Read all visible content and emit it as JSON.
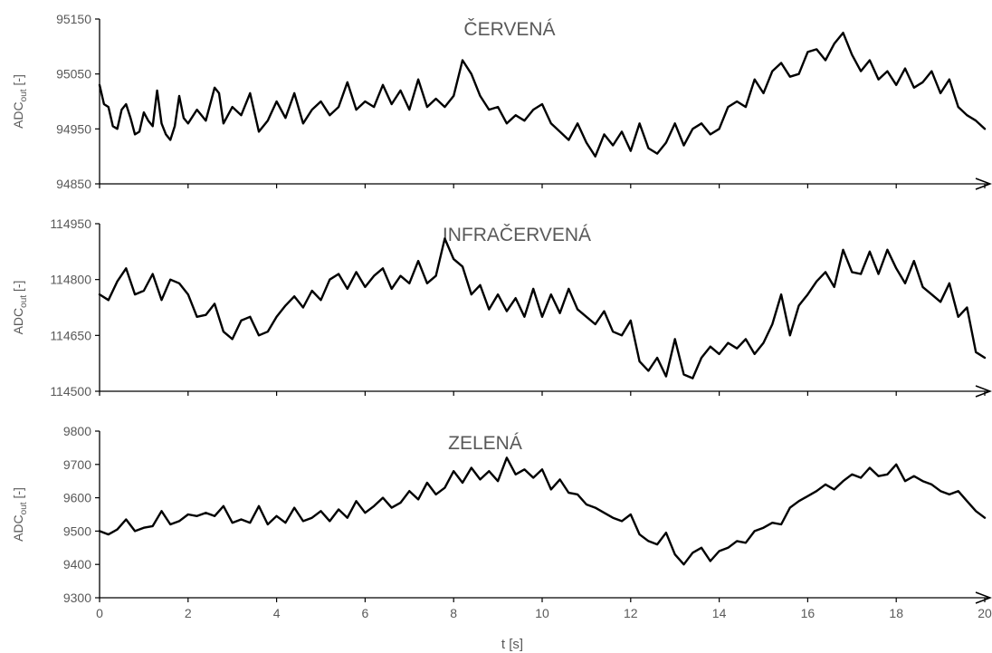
{
  "chart_data": [
    {
      "type": "line",
      "title": "ČERVENÁ",
      "ylabel": "ADC",
      "ylabel_sub": "out",
      "ylabel_unit": " [-]",
      "ylim": [
        94850,
        95150
      ],
      "yticks": [
        94850,
        94950,
        95050,
        95150
      ],
      "xlim": [
        0,
        20
      ],
      "grid": false,
      "series": [
        {
          "color": "#000000",
          "x": [
            0,
            0.1,
            0.2,
            0.3,
            0.4,
            0.5,
            0.6,
            0.7,
            0.8,
            0.9,
            1.0,
            1.1,
            1.2,
            1.3,
            1.4,
            1.5,
            1.6,
            1.7,
            1.8,
            1.9,
            2.0,
            2.2,
            2.4,
            2.6,
            2.7,
            2.8,
            3.0,
            3.2,
            3.4,
            3.6,
            3.8,
            4.0,
            4.2,
            4.4,
            4.6,
            4.8,
            5.0,
            5.2,
            5.4,
            5.6,
            5.8,
            6.0,
            6.2,
            6.4,
            6.6,
            6.8,
            7.0,
            7.2,
            7.4,
            7.6,
            7.8,
            8.0,
            8.2,
            8.4,
            8.6,
            8.8,
            9.0,
            9.2,
            9.4,
            9.6,
            9.8,
            10.0,
            10.2,
            10.4,
            10.6,
            10.8,
            11.0,
            11.2,
            11.4,
            11.6,
            11.8,
            12.0,
            12.2,
            12.4,
            12.6,
            12.8,
            13.0,
            13.2,
            13.4,
            13.6,
            13.8,
            14.0,
            14.2,
            14.4,
            14.6,
            14.8,
            15.0,
            15.2,
            15.4,
            15.6,
            15.8,
            16.0,
            16.2,
            16.4,
            16.6,
            16.8,
            17.0,
            17.2,
            17.4,
            17.6,
            17.8,
            18.0,
            18.2,
            18.4,
            18.6,
            18.8,
            19.0,
            19.2,
            19.4,
            19.6,
            19.8,
            20.0
          ],
          "y": [
            95030,
            94995,
            94990,
            94955,
            94950,
            94985,
            94995,
            94970,
            94940,
            94945,
            94980,
            94965,
            94955,
            95020,
            94960,
            94940,
            94930,
            94955,
            95010,
            94970,
            94960,
            94985,
            94965,
            95025,
            95015,
            94960,
            94990,
            94975,
            95015,
            94945,
            94965,
            95000,
            94970,
            95015,
            94960,
            94985,
            95000,
            94975,
            94990,
            95035,
            94985,
            95000,
            94990,
            95030,
            94995,
            95020,
            94985,
            95040,
            94990,
            95005,
            94990,
            95010,
            95075,
            95050,
            95010,
            94985,
            94990,
            94960,
            94975,
            94965,
            94985,
            94995,
            94960,
            94945,
            94930,
            94960,
            94925,
            94900,
            94940,
            94920,
            94945,
            94910,
            94960,
            94915,
            94905,
            94925,
            94960,
            94920,
            94950,
            94960,
            94940,
            94950,
            94990,
            95000,
            94990,
            95040,
            95015,
            95055,
            95070,
            95045,
            95050,
            95090,
            95095,
            95075,
            95105,
            95125,
            95085,
            95055,
            95075,
            95040,
            95055,
            95030,
            95060,
            95025,
            95035,
            95055,
            95015,
            95040,
            94990,
            94975,
            94965,
            94950
          ]
        }
      ]
    },
    {
      "type": "line",
      "title": "INFRAČERVENÁ",
      "ylabel": "ADC",
      "ylabel_sub": "out",
      "ylabel_unit": " [-]",
      "ylim": [
        114500,
        114950
      ],
      "yticks": [
        114500,
        114650,
        114800,
        114950
      ],
      "xlim": [
        0,
        20
      ],
      "grid": false,
      "series": [
        {
          "color": "#000000",
          "x": [
            0,
            0.2,
            0.4,
            0.6,
            0.8,
            1.0,
            1.2,
            1.4,
            1.6,
            1.8,
            2.0,
            2.2,
            2.4,
            2.6,
            2.8,
            3.0,
            3.2,
            3.4,
            3.6,
            3.8,
            4.0,
            4.2,
            4.4,
            4.6,
            4.8,
            5.0,
            5.2,
            5.4,
            5.6,
            5.8,
            6.0,
            6.2,
            6.4,
            6.6,
            6.8,
            7.0,
            7.2,
            7.4,
            7.6,
            7.8,
            8.0,
            8.2,
            8.4,
            8.6,
            8.8,
            9.0,
            9.2,
            9.4,
            9.6,
            9.8,
            10.0,
            10.2,
            10.4,
            10.6,
            10.8,
            11.0,
            11.2,
            11.4,
            11.6,
            11.8,
            12.0,
            12.2,
            12.4,
            12.6,
            12.8,
            13.0,
            13.2,
            13.4,
            13.6,
            13.8,
            14.0,
            14.2,
            14.4,
            14.6,
            14.8,
            15.0,
            15.2,
            15.4,
            15.6,
            15.8,
            16.0,
            16.2,
            16.4,
            16.6,
            16.8,
            17.0,
            17.2,
            17.4,
            17.6,
            17.8,
            18.0,
            18.2,
            18.4,
            18.6,
            18.8,
            19.0,
            19.2,
            19.4,
            19.6,
            19.8,
            20.0
          ],
          "y": [
            114760,
            114745,
            114795,
            114830,
            114760,
            114770,
            114815,
            114745,
            114800,
            114790,
            114760,
            114700,
            114705,
            114735,
            114660,
            114640,
            114690,
            114700,
            114650,
            114660,
            114700,
            114730,
            114755,
            114725,
            114770,
            114745,
            114800,
            114815,
            114775,
            114820,
            114780,
            114810,
            114830,
            114775,
            114810,
            114790,
            114850,
            114790,
            114810,
            114910,
            114855,
            114835,
            114760,
            114785,
            114720,
            114760,
            114715,
            114750,
            114700,
            114775,
            114700,
            114760,
            114710,
            114775,
            114720,
            114700,
            114680,
            114715,
            114660,
            114650,
            114690,
            114580,
            114555,
            114590,
            114540,
            114640,
            114545,
            114535,
            114590,
            114620,
            114600,
            114630,
            114615,
            114640,
            114600,
            114630,
            114680,
            114760,
            114650,
            114730,
            114760,
            114795,
            114820,
            114780,
            114880,
            114820,
            114815,
            114875,
            114815,
            114880,
            114830,
            114790,
            114850,
            114780,
            114760,
            114740,
            114790,
            114700,
            114725,
            114605,
            114590
          ]
        }
      ]
    },
    {
      "type": "line",
      "title": "ZELENÁ",
      "ylabel": "ADC",
      "ylabel_sub": "out",
      "ylabel_unit": " [-]",
      "xlabel": "t [s]",
      "ylim": [
        9300,
        9800
      ],
      "yticks": [
        9300,
        9400,
        9500,
        9600,
        9700,
        9800
      ],
      "xlim": [
        0,
        20
      ],
      "xticks": [
        0,
        2,
        4,
        6,
        8,
        10,
        12,
        14,
        16,
        18,
        20
      ],
      "grid": false,
      "series": [
        {
          "color": "#000000",
          "x": [
            0,
            0.2,
            0.4,
            0.6,
            0.8,
            1.0,
            1.2,
            1.4,
            1.6,
            1.8,
            2.0,
            2.2,
            2.4,
            2.6,
            2.8,
            3.0,
            3.2,
            3.4,
            3.6,
            3.8,
            4.0,
            4.2,
            4.4,
            4.6,
            4.8,
            5.0,
            5.2,
            5.4,
            5.6,
            5.8,
            6.0,
            6.2,
            6.4,
            6.6,
            6.8,
            7.0,
            7.2,
            7.4,
            7.6,
            7.8,
            8.0,
            8.2,
            8.4,
            8.6,
            8.8,
            9.0,
            9.2,
            9.4,
            9.6,
            9.8,
            10.0,
            10.2,
            10.4,
            10.6,
            10.8,
            11.0,
            11.2,
            11.4,
            11.6,
            11.8,
            12.0,
            12.2,
            12.4,
            12.6,
            12.8,
            13.0,
            13.2,
            13.4,
            13.6,
            13.8,
            14.0,
            14.2,
            14.4,
            14.6,
            14.8,
            15.0,
            15.2,
            15.4,
            15.6,
            15.8,
            16.0,
            16.2,
            16.4,
            16.6,
            16.8,
            17.0,
            17.2,
            17.4,
            17.6,
            17.8,
            18.0,
            18.2,
            18.4,
            18.6,
            18.8,
            19.0,
            19.2,
            19.4,
            19.6,
            19.8,
            20.0
          ],
          "y": [
            9500,
            9490,
            9505,
            9535,
            9500,
            9510,
            9515,
            9560,
            9520,
            9530,
            9550,
            9545,
            9555,
            9545,
            9575,
            9525,
            9535,
            9525,
            9575,
            9520,
            9545,
            9525,
            9570,
            9530,
            9540,
            9560,
            9530,
            9565,
            9540,
            9590,
            9555,
            9575,
            9600,
            9570,
            9585,
            9620,
            9595,
            9645,
            9610,
            9630,
            9680,
            9645,
            9690,
            9655,
            9680,
            9650,
            9720,
            9670,
            9685,
            9660,
            9685,
            9625,
            9655,
            9615,
            9610,
            9580,
            9570,
            9555,
            9540,
            9530,
            9550,
            9490,
            9470,
            9460,
            9495,
            9430,
            9400,
            9435,
            9450,
            9410,
            9440,
            9450,
            9470,
            9465,
            9500,
            9510,
            9525,
            9520,
            9570,
            9590,
            9605,
            9620,
            9640,
            9625,
            9650,
            9670,
            9660,
            9690,
            9665,
            9670,
            9700,
            9650,
            9665,
            9650,
            9640,
            9620,
            9610,
            9620,
            9590,
            9560,
            9540
          ]
        }
      ]
    }
  ]
}
